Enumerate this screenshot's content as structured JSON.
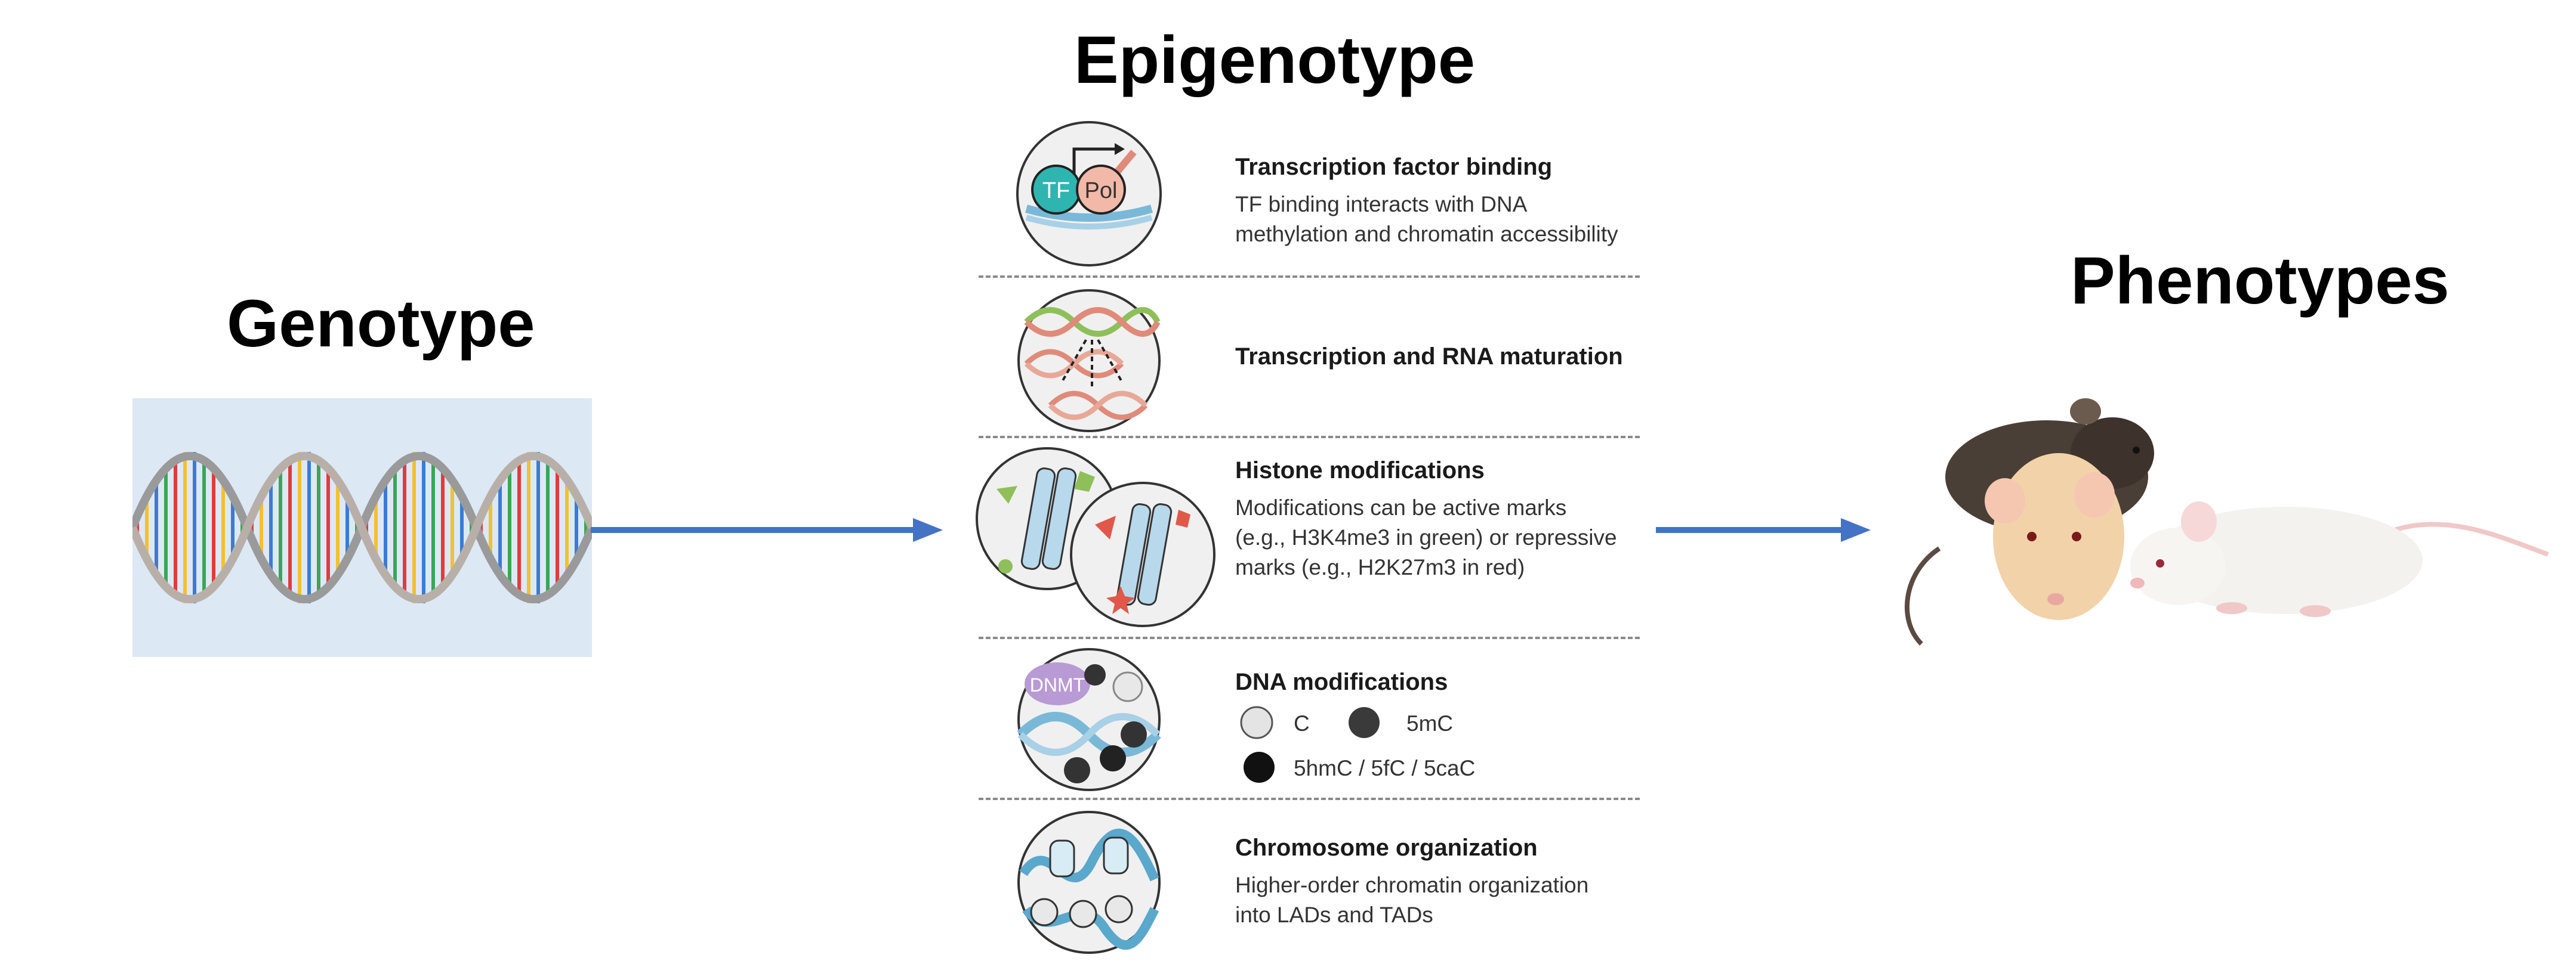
{
  "genotype": {
    "title": "Genotype"
  },
  "epigenotype": {
    "title": "Epigenotype",
    "items": [
      {
        "title": "Transcription factor binding",
        "desc": [
          "TF binding interacts with DNA",
          "methylation and chromatin accessibility"
        ],
        "icon_labels": [
          "TF",
          "Pol"
        ]
      },
      {
        "title": "Transcription and RNA maturation",
        "desc": []
      },
      {
        "title": "Histone modifications",
        "desc": [
          "Modifications can be active marks",
          "(e.g., H3K4me3 in green) or repressive",
          "marks (e.g., H2K27m3 in red)"
        ]
      },
      {
        "title": "DNA modifications",
        "icon_labels": [
          "DNMT"
        ],
        "legend": [
          "C",
          "5mC",
          "5hmC / 5fC / 5caC"
        ]
      },
      {
        "title": "Chromosome organization",
        "desc": [
          "Higher-order chromatin organization",
          "into LADs and TADs"
        ]
      }
    ]
  },
  "phenotypes": {
    "title": "Phenotypes"
  },
  "colors": {
    "arrow": "#4472c4",
    "dna_panel": "#dde8f5",
    "divider": "#8a8a8a",
    "active_mark": "#8fbf5a",
    "repressive_mark": "#e0584a",
    "dnmt": "#b89ad4",
    "tf": "#2fb5b0",
    "pol": "#f2b8a8"
  }
}
